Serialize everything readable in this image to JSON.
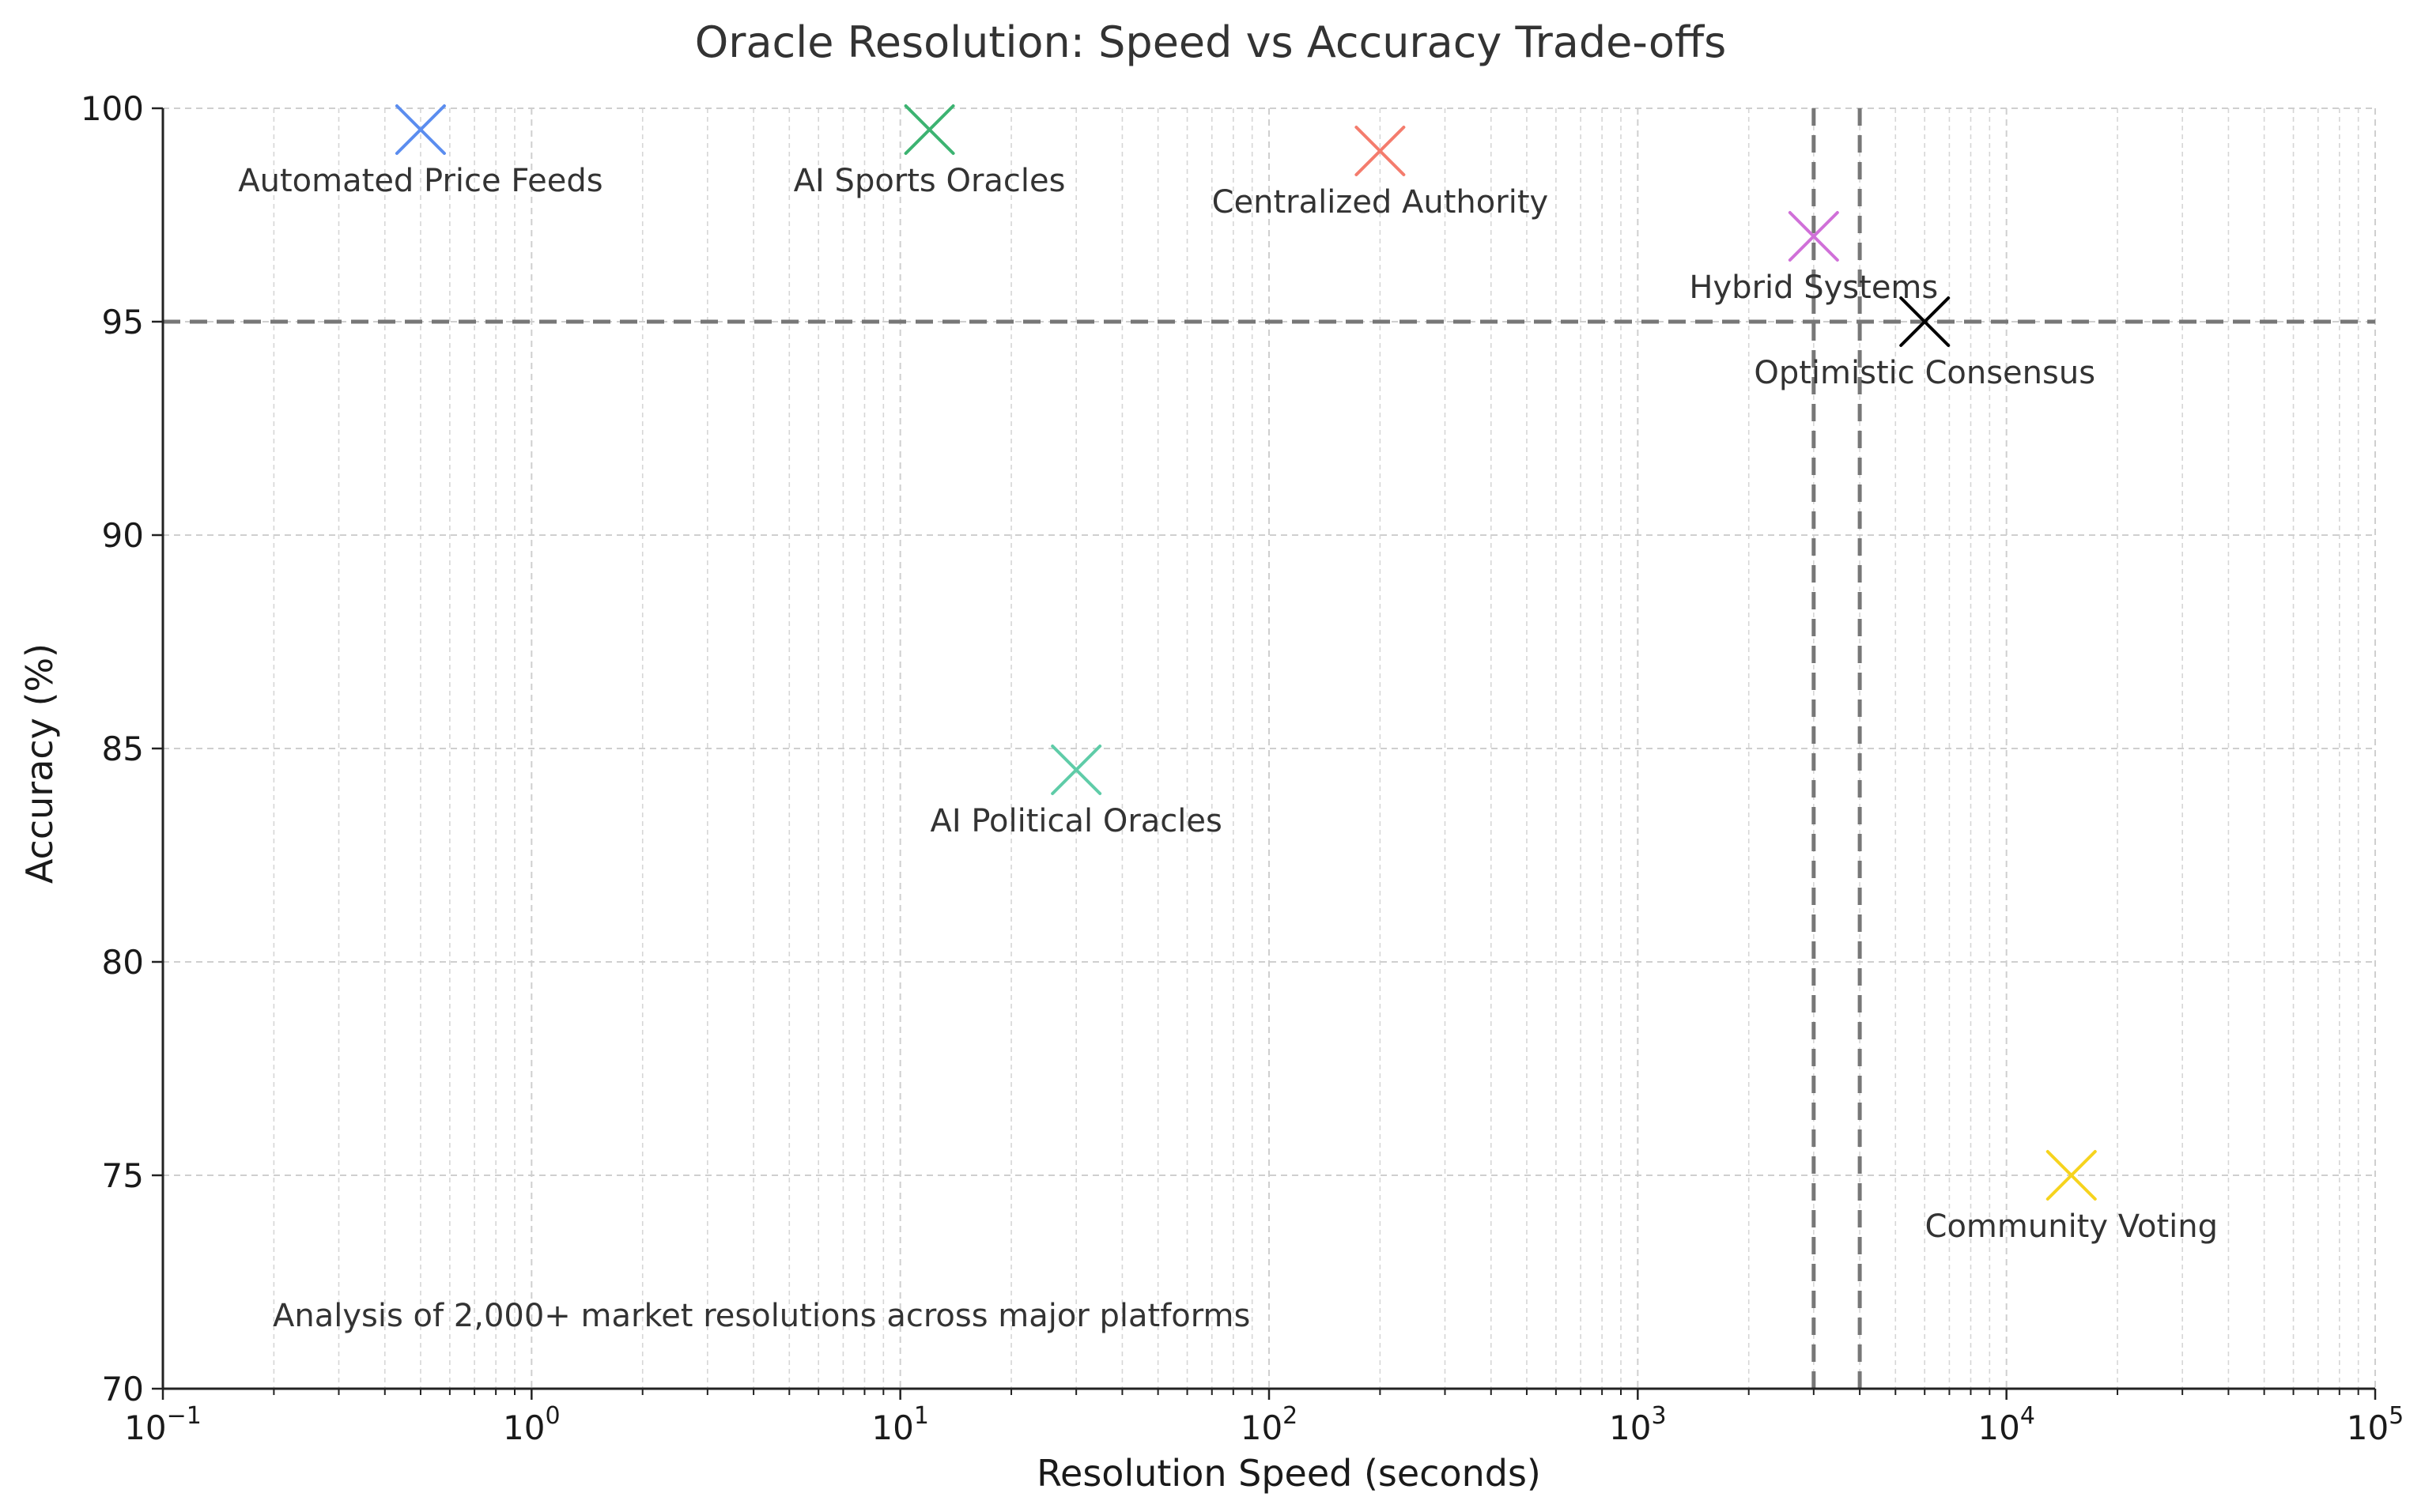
{
  "chart_data": {
    "type": "scatter",
    "title": "Oracle Resolution: Speed vs Accuracy Trade-offs",
    "xlabel": "Resolution Speed (seconds)",
    "ylabel": "Accuracy (%)",
    "xscale": "log",
    "xlim": [
      0.1,
      100000
    ],
    "ylim": [
      70,
      100
    ],
    "x_ticks": [
      {
        "base": "10",
        "exp": "−1"
      },
      {
        "base": "10",
        "exp": "0"
      },
      {
        "base": "10",
        "exp": "1"
      },
      {
        "base": "10",
        "exp": "2"
      },
      {
        "base": "10",
        "exp": "3"
      },
      {
        "base": "10",
        "exp": "4"
      },
      {
        "base": "10",
        "exp": "5"
      }
    ],
    "y_ticks": [
      "70",
      "75",
      "80",
      "85",
      "90",
      "95",
      "100"
    ],
    "grid": true,
    "marker": "x",
    "points": [
      {
        "label": "Automated Price Feeds",
        "x": 0.5,
        "y": 99.5,
        "color": "#5b8def"
      },
      {
        "label": "AI Sports Oracles",
        "x": 12,
        "y": 99.5,
        "color": "#3cb371"
      },
      {
        "label": "Centralized Authority",
        "x": 200,
        "y": 99,
        "color": "#f47c6d"
      },
      {
        "label": "Hybrid Systems",
        "x": 3000,
        "y": 97,
        "color": "#d070d8"
      },
      {
        "label": "Optimistic Consensus",
        "x": 6000,
        "y": 95,
        "color": "#000000"
      },
      {
        "label": "AI Political Oracles",
        "x": 30,
        "y": 84.5,
        "color": "#5fcca8"
      },
      {
        "label": "Community Voting",
        "x": 15000,
        "y": 75,
        "color": "#f6d31e"
      }
    ],
    "reference_lines": [
      {
        "orientation": "horizontal",
        "value": 95
      },
      {
        "orientation": "vertical",
        "value": 3000
      },
      {
        "orientation": "vertical",
        "value": 4000
      }
    ],
    "annotation": "Analysis of 2,000+ market resolutions across major platforms"
  }
}
